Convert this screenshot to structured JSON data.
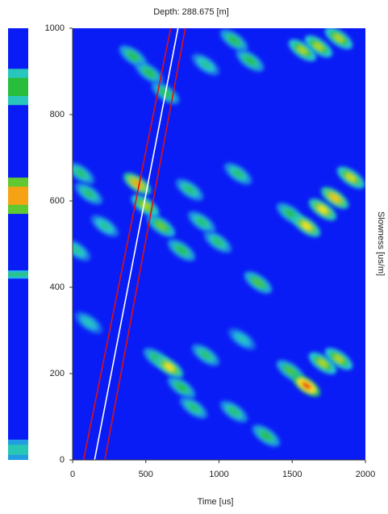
{
  "chart_data": {
    "type": "heatmap",
    "title": "Depth: 288.675 [m]",
    "xlabel": "Time [us]",
    "ylabel": "Slowness [us/m]",
    "xlim": [
      0,
      2000
    ],
    "ylim": [
      0,
      1000
    ],
    "xticks": [
      0,
      500,
      1000,
      1500,
      2000
    ],
    "yticks": [
      0,
      200,
      400,
      600,
      800,
      1000
    ],
    "background": "#0a1cf5",
    "blobs": {
      "x": [
        413,
        523,
        634,
        1102,
        1212,
        909,
        1570,
        1680,
        1818,
        441,
        496,
        606,
        744,
        55,
        110,
        28,
        220,
        799,
        882,
        992,
        1130,
        1267,
        1488,
        1598,
        1708,
        1791,
        1901,
        579,
        661,
        744,
        827,
        909,
        1102,
        1322,
        1488,
        1598,
        1708,
        1818,
        110,
        1157
      ],
      "y": [
        935,
        897,
        850,
        972,
        925,
        916,
        949,
        958,
        977,
        640,
        589,
        542,
        486,
        664,
        617,
        486,
        542,
        626,
        551,
        505,
        663,
        411,
        570,
        542,
        580,
        607,
        654,
        234,
        215,
        168,
        121,
        243,
        112,
        56,
        206,
        172,
        224,
        234,
        318,
        280
      ],
      "values": [
        0.4,
        0.4,
        0.4,
        0.4,
        0.4,
        0.3,
        0.6,
        0.6,
        0.6,
        0.8,
        0.6,
        0.5,
        0.4,
        0.35,
        0.35,
        0.3,
        0.3,
        0.35,
        0.35,
        0.35,
        0.35,
        0.45,
        0.4,
        0.7,
        0.7,
        0.75,
        0.65,
        0.4,
        0.7,
        0.4,
        0.35,
        0.35,
        0.35,
        0.4,
        0.45,
        1.0,
        0.6,
        0.6,
        0.25,
        0.25
      ]
    },
    "lines": [
      {
        "color": "#e01010",
        "x": [
          75,
          670
        ],
        "y": [
          0,
          1000
        ]
      },
      {
        "color": "#ffffff",
        "x": [
          150,
          720
        ],
        "y": [
          0,
          1000
        ]
      },
      {
        "color": "#e01010",
        "x": [
          220,
          770
        ],
        "y": [
          0,
          1000
        ]
      }
    ],
    "profile_bands": [
      {
        "from": 822,
        "to": 906,
        "intensity": 0.4
      },
      {
        "from": 570,
        "to": 654,
        "intensity": 0.8
      },
      {
        "from": 420,
        "to": 439,
        "intensity": 0.3
      },
      {
        "from": 0,
        "to": 47,
        "intensity": 0.25
      }
    ]
  }
}
